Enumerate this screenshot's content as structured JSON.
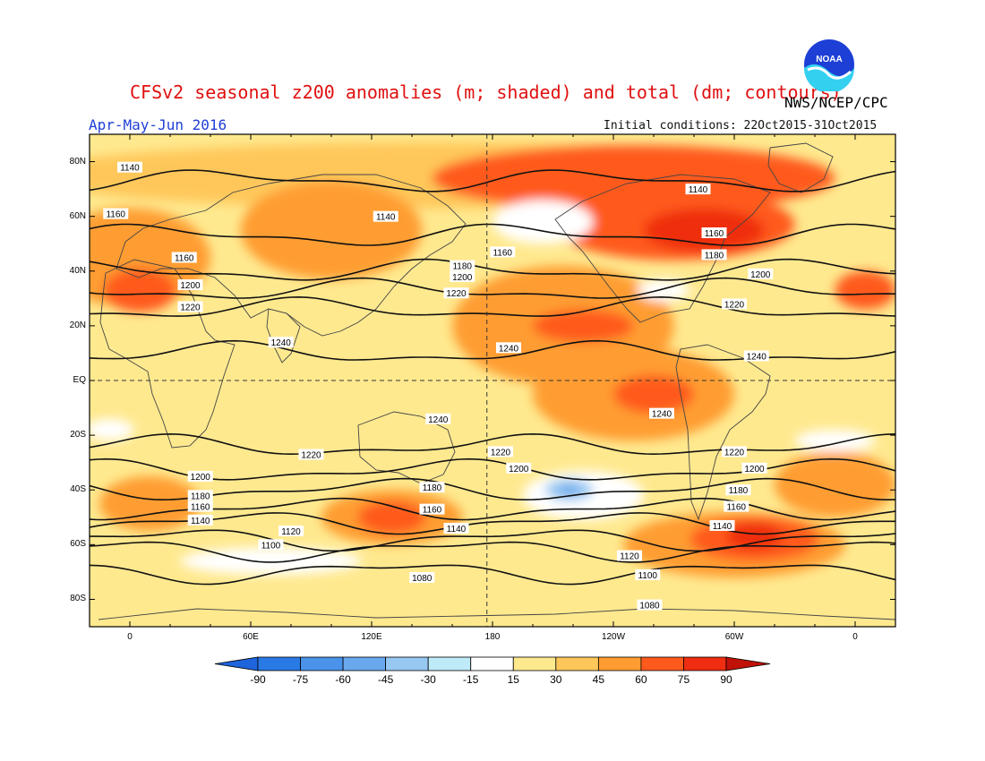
{
  "header": {
    "title": "CFSv2 seasonal z200 anomalies (m; shaded) and total (dm; contours)",
    "agency": "NWS/NCEP/CPC",
    "season": "Apr-May-Jun 2016",
    "initial_conditions": "Initial conditions: 22Oct2015-31Oct2015",
    "logo_text": "NOAA"
  },
  "map": {
    "lat_labels": [
      "80N",
      "60N",
      "40N",
      "20N",
      "EQ",
      "20S",
      "40S",
      "60S",
      "80S"
    ],
    "lat_values": [
      80,
      60,
      40,
      20,
      0,
      -20,
      -40,
      -60,
      -80
    ],
    "lon_labels": [
      "0",
      "60E",
      "120E",
      "180",
      "120W",
      "60W",
      "0"
    ],
    "lon_values": [
      0,
      60,
      120,
      180,
      240,
      300,
      360
    ],
    "lon_range": [
      -20,
      380
    ],
    "lat_range": [
      -90,
      90
    ],
    "contour_interval_dm": 20,
    "contours": [
      {
        "value": 1140,
        "lat": 73,
        "labels": [
          [
            0,
            78
          ],
          [
            127,
            60
          ],
          [
            282,
            70
          ]
        ]
      },
      {
        "value": 1160,
        "lat": 53,
        "labels": [
          [
            -7,
            61
          ],
          [
            27,
            45
          ],
          [
            185,
            47
          ],
          [
            290,
            54
          ]
        ]
      },
      {
        "value": 1180,
        "lat": 40,
        "labels": [
          [
            165,
            42
          ],
          [
            290,
            46
          ]
        ]
      },
      {
        "value": 1200,
        "lat": 33,
        "labels": [
          [
            30,
            35
          ],
          [
            165,
            38
          ],
          [
            313,
            39
          ]
        ]
      },
      {
        "value": 1220,
        "lat": 26,
        "labels": [
          [
            30,
            27
          ],
          [
            162,
            32
          ],
          [
            300,
            28
          ]
        ]
      },
      {
        "value": 1240,
        "lat": 10,
        "labels": [
          [
            75,
            14
          ],
          [
            188,
            12
          ],
          [
            311,
            9
          ],
          [
            153,
            -14
          ],
          [
            264,
            -12
          ]
        ]
      },
      {
        "value": 1220,
        "lat": -24,
        "labels": [
          [
            90,
            -27
          ],
          [
            184,
            -26
          ],
          [
            300,
            -26
          ]
        ]
      },
      {
        "value": 1200,
        "lat": -33,
        "labels": [
          [
            35,
            -35
          ],
          [
            193,
            -32
          ],
          [
            310,
            -32
          ]
        ]
      },
      {
        "value": 1180,
        "lat": -40,
        "labels": [
          [
            35,
            -42
          ],
          [
            150,
            -39
          ],
          [
            302,
            -40
          ]
        ]
      },
      {
        "value": 1160,
        "lat": -47,
        "labels": [
          [
            35,
            -46
          ],
          [
            150,
            -47
          ],
          [
            301,
            -46
          ]
        ]
      },
      {
        "value": 1140,
        "lat": -52,
        "labels": [
          [
            35,
            -51
          ],
          [
            162,
            -54
          ],
          [
            294,
            -53
          ]
        ]
      },
      {
        "value": 1120,
        "lat": -58,
        "labels": [
          [
            80,
            -55
          ],
          [
            248,
            -64
          ]
        ]
      },
      {
        "value": 1100,
        "lat": -62,
        "labels": [
          [
            70,
            -60
          ],
          [
            257,
            -71
          ]
        ]
      },
      {
        "value": 1080,
        "lat": -70,
        "labels": [
          [
            145,
            -72
          ],
          [
            258,
            -82
          ]
        ]
      }
    ],
    "anomaly_blobs": [
      {
        "lon": 150,
        "lat": 75,
        "rx": 200,
        "ry": 12,
        "level": 30
      },
      {
        "lon": 250,
        "lat": 74,
        "rx": 100,
        "ry": 12,
        "level": 60
      },
      {
        "lon": 270,
        "lat": 57,
        "rx": 60,
        "ry": 13,
        "level": 60
      },
      {
        "lon": 285,
        "lat": 55,
        "rx": 30,
        "ry": 8,
        "level": 75
      },
      {
        "lon": 100,
        "lat": 55,
        "rx": 45,
        "ry": 18,
        "level": 45
      },
      {
        "lon": 0,
        "lat": 45,
        "rx": 40,
        "ry": 18,
        "level": 45
      },
      {
        "lon": 5,
        "lat": 33,
        "rx": 18,
        "ry": 8,
        "level": 60
      },
      {
        "lon": 365,
        "lat": 33,
        "rx": 15,
        "ry": 7,
        "level": 60
      },
      {
        "lon": 215,
        "lat": 20,
        "rx": 55,
        "ry": 22,
        "level": 45
      },
      {
        "lon": 225,
        "lat": 20,
        "rx": 25,
        "ry": 6,
        "level": 60
      },
      {
        "lon": 250,
        "lat": -5,
        "rx": 50,
        "ry": 17,
        "level": 45
      },
      {
        "lon": 260,
        "lat": -5,
        "rx": 20,
        "ry": 7,
        "level": 60
      },
      {
        "lon": 10,
        "lat": -45,
        "rx": 25,
        "ry": 10,
        "level": 45
      },
      {
        "lon": 130,
        "lat": -50,
        "rx": 35,
        "ry": 10,
        "level": 45
      },
      {
        "lon": 130,
        "lat": -50,
        "rx": 17,
        "ry": 6,
        "level": 60
      },
      {
        "lon": 300,
        "lat": -60,
        "rx": 55,
        "ry": 12,
        "level": 45
      },
      {
        "lon": 310,
        "lat": -58,
        "rx": 32,
        "ry": 8,
        "level": 60
      },
      {
        "lon": 310,
        "lat": -57,
        "rx": 14,
        "ry": 5,
        "level": 75
      },
      {
        "lon": 350,
        "lat": -38,
        "rx": 30,
        "ry": 12,
        "level": 45
      }
    ],
    "neutral_blobs": [
      {
        "lon": 205,
        "lat": 58,
        "rx": 25,
        "ry": 8,
        "level": -15
      },
      {
        "lon": 265,
        "lat": 33,
        "rx": 13,
        "ry": 4,
        "level": -15
      },
      {
        "lon": 225,
        "lat": -42,
        "rx": 30,
        "ry": 9,
        "level": -15
      },
      {
        "lon": 218,
        "lat": -40,
        "rx": 12,
        "ry": 4,
        "level": -30
      },
      {
        "lon": 218,
        "lat": -40,
        "rx": 5,
        "ry": 2,
        "level": -45
      },
      {
        "lon": -10,
        "lat": -18,
        "rx": 12,
        "ry": 4,
        "level": -15
      },
      {
        "lon": 70,
        "lat": -66,
        "rx": 45,
        "ry": 5,
        "level": -15
      },
      {
        "lon": 350,
        "lat": -22,
        "rx": 20,
        "ry": 4,
        "level": -15
      }
    ]
  },
  "colorbar": {
    "labels": [
      "-90",
      "-75",
      "-60",
      "-45",
      "-30",
      "-15",
      "15",
      "30",
      "45",
      "60",
      "75",
      "90"
    ],
    "colors": [
      "#1e64dc",
      "#2a7ae6",
      "#4a92ea",
      "#6aa8ee",
      "#96c8f2",
      "#bfeaf7",
      "#ffffff",
      "#ffe98f",
      "#ffc75a",
      "#ff9d32",
      "#ff5a1e",
      "#ef2d10",
      "#c01208"
    ],
    "level_colors": {
      "-45": "#6aa8ee",
      "-30": "#96c8f2",
      "-15": "#ffffff",
      "15": "#ffe98f",
      "30": "#ffc75a",
      "45": "#ff9d32",
      "60": "#ff5a1e",
      "75": "#ef2d10"
    }
  }
}
